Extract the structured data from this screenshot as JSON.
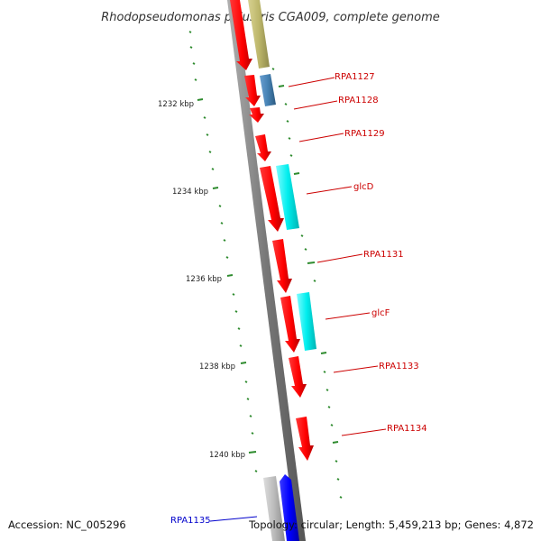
{
  "title": "Rhodopseudomonas palustris CGA009, complete genome",
  "footer": {
    "accession": "Accession: NC_005296",
    "topology": "Topology: circular; Length: 5,459,213 bp; Genes: 4,872"
  },
  "colors": {
    "backbone": "#888888",
    "cds_red": "#ff0000",
    "cds_olive": "#bdb76b",
    "cds_steelblue": "#4682b4",
    "cds_cyan": "#00e5ee",
    "cds_blue": "#0000ff",
    "cds_gray": "#bbbbbb",
    "tick_green": "#2e8b2e",
    "gene_label_red": "#cc0000",
    "gene_label_blue": "#0000cc"
  },
  "scale_ticks": [
    {
      "label": "1232 kbp"
    },
    {
      "label": "1234 kbp"
    },
    {
      "label": "1236 kbp"
    },
    {
      "label": "1238 kbp"
    },
    {
      "label": "1240 kbp"
    }
  ],
  "gene_labels": [
    {
      "text": "RPA1127",
      "color": "red"
    },
    {
      "text": "RPA1128",
      "color": "red"
    },
    {
      "text": "RPA1129",
      "color": "red"
    },
    {
      "text": "glcD",
      "color": "red"
    },
    {
      "text": "RPA1131",
      "color": "red"
    },
    {
      "text": "glcF",
      "color": "red"
    },
    {
      "text": "RPA1133",
      "color": "red"
    },
    {
      "text": "RPA1134",
      "color": "red"
    },
    {
      "text": "RPA1135",
      "color": "blue"
    }
  ]
}
